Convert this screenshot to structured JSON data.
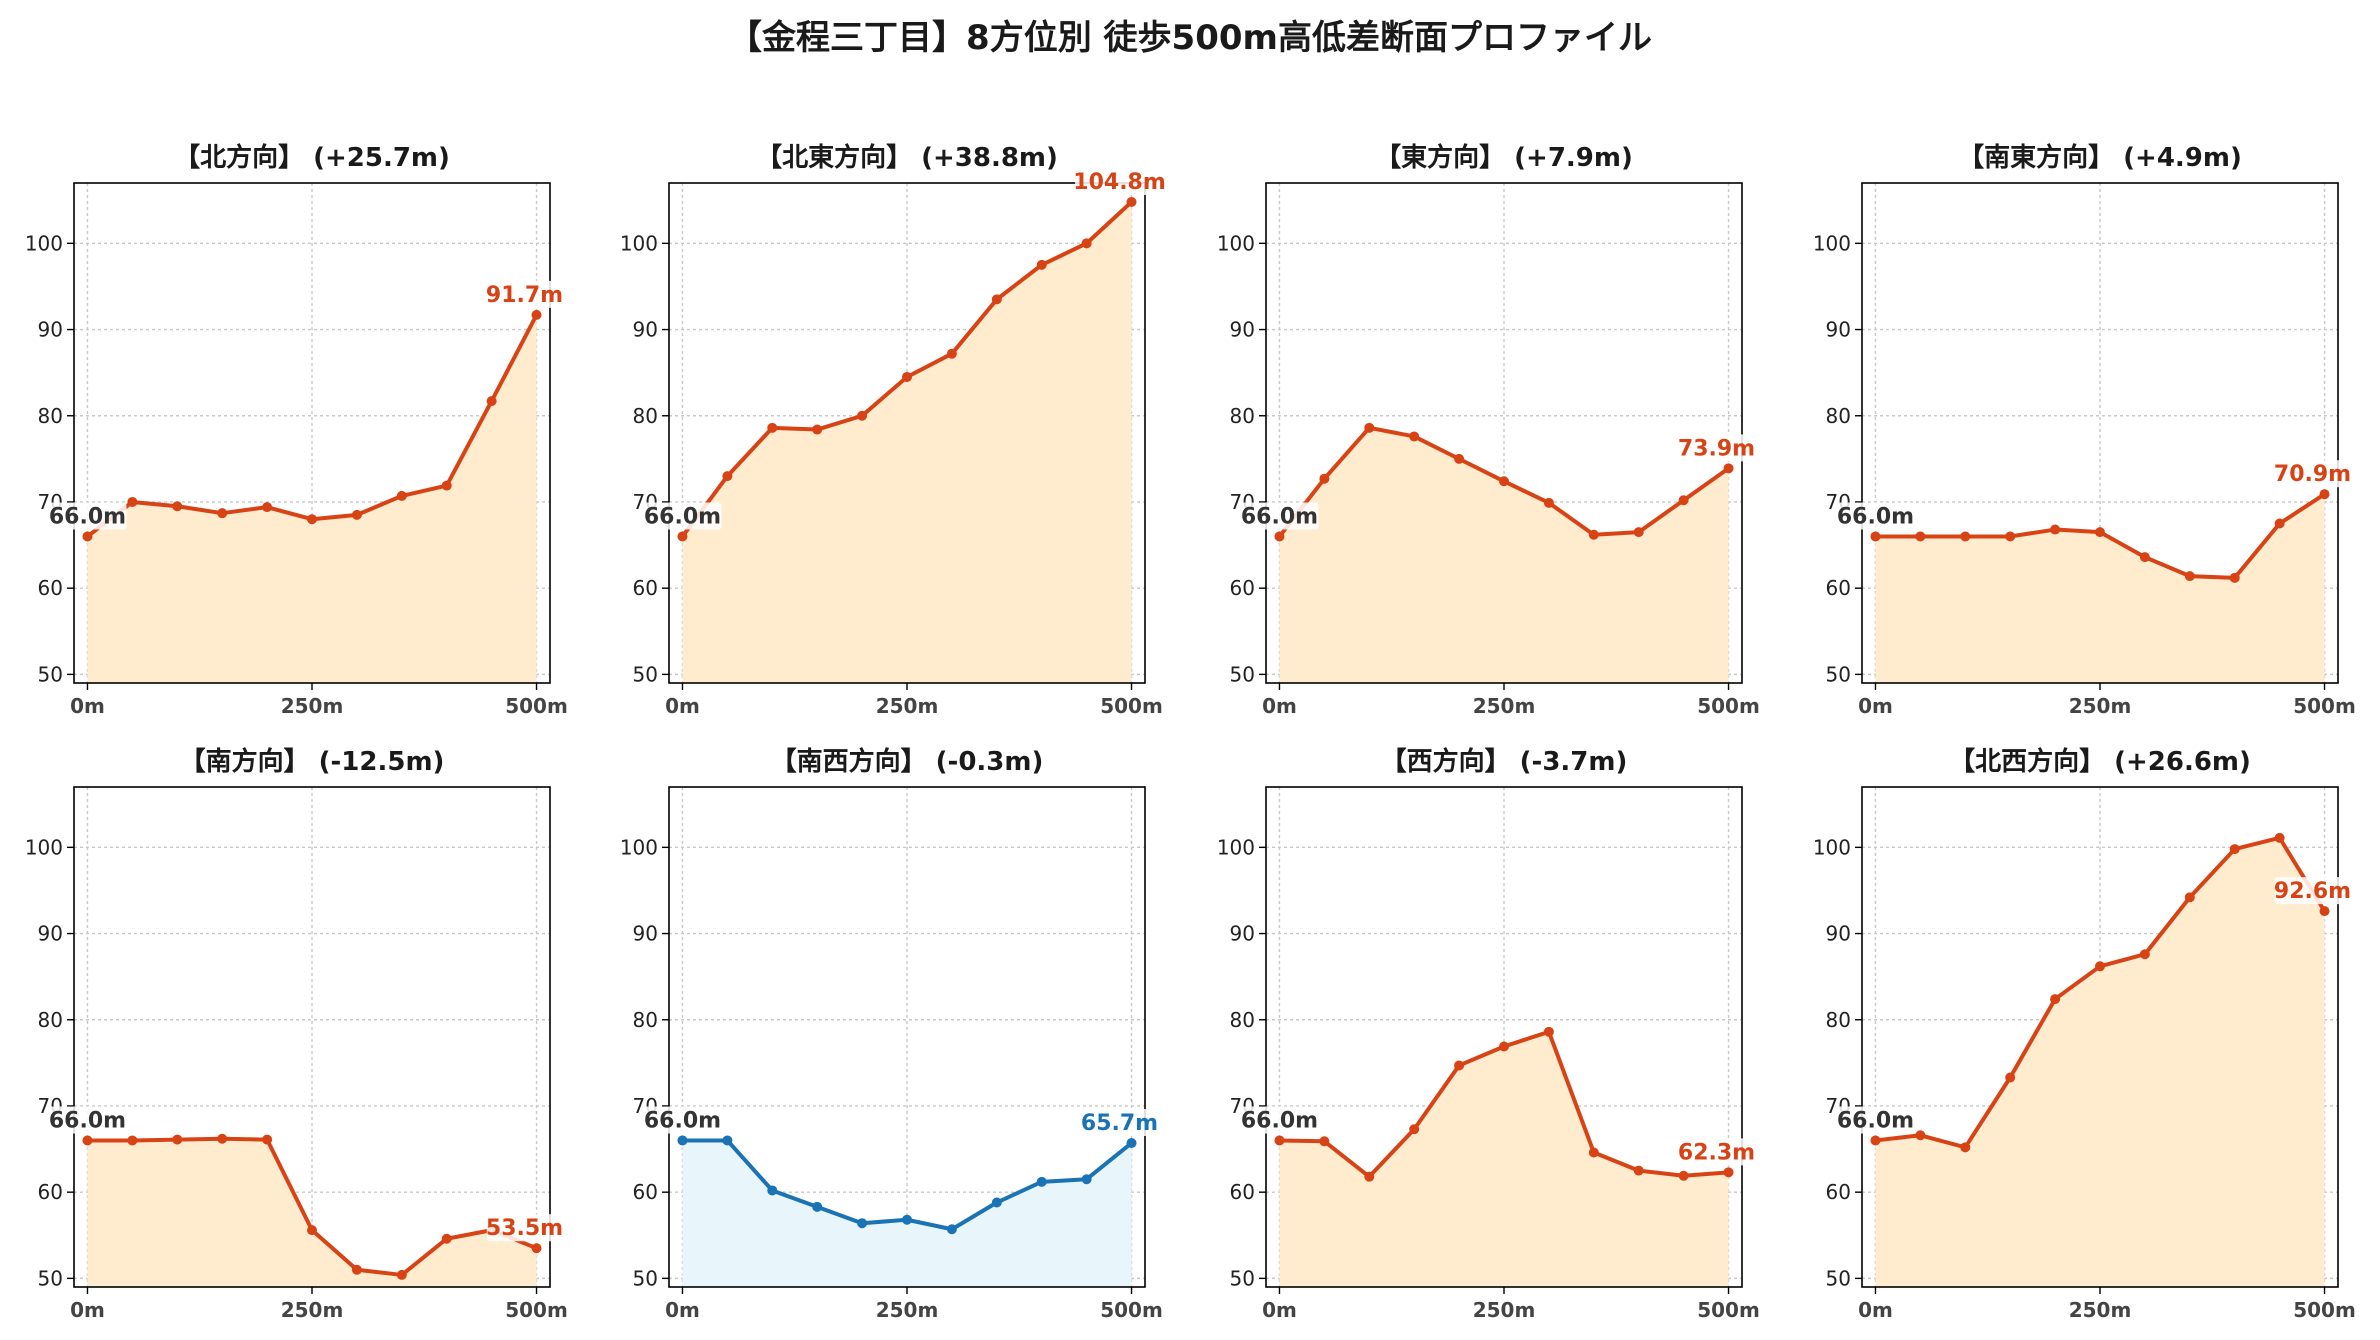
{
  "title": "【金程三丁目】8方位別 徒歩500m高低差断面プロファイル",
  "colors": {
    "up_line": "#d84315",
    "up_fill": "#ffeccf",
    "down_line": "#1a73b5",
    "down_fill": "#e8f6fb",
    "start_label": "#333333",
    "grid": "#c8c8c8",
    "axis": "#000000"
  },
  "chart_data": [
    {
      "type": "area",
      "title": "【北方向】 (+25.7m)",
      "trend": "up",
      "x": [
        0,
        50,
        100,
        150,
        200,
        250,
        300,
        350,
        400,
        450,
        500
      ],
      "y": [
        66.0,
        70.0,
        69.5,
        68.7,
        69.4,
        68.0,
        68.5,
        70.7,
        71.9,
        81.7,
        91.7
      ],
      "start_label": "66.0m",
      "end_label": "91.7m",
      "ylim": [
        49,
        107
      ],
      "yticks": [
        50,
        60,
        70,
        80,
        90,
        100
      ],
      "xticks": [
        0,
        250,
        500
      ],
      "xtick_labels": [
        "0m",
        "250m",
        "500m"
      ],
      "grid": true
    },
    {
      "type": "area",
      "title": "【北東方向】 (+38.8m)",
      "trend": "up",
      "x": [
        0,
        50,
        100,
        150,
        200,
        250,
        300,
        350,
        400,
        450,
        500
      ],
      "y": [
        66.0,
        73.0,
        78.6,
        78.4,
        80.0,
        84.5,
        87.2,
        93.5,
        97.5,
        100.0,
        104.8
      ],
      "start_label": "66.0m",
      "end_label": "104.8m",
      "ylim": [
        49,
        107
      ],
      "yticks": [
        50,
        60,
        70,
        80,
        90,
        100
      ],
      "xticks": [
        0,
        250,
        500
      ],
      "xtick_labels": [
        "0m",
        "250m",
        "500m"
      ],
      "grid": true
    },
    {
      "type": "area",
      "title": "【東方向】 (+7.9m)",
      "trend": "up",
      "x": [
        0,
        50,
        100,
        150,
        200,
        250,
        300,
        350,
        400,
        450,
        500
      ],
      "y": [
        66.0,
        72.7,
        78.6,
        77.6,
        75.0,
        72.4,
        69.9,
        66.2,
        66.5,
        70.2,
        73.9
      ],
      "start_label": "66.0m",
      "end_label": "73.9m",
      "ylim": [
        49,
        107
      ],
      "yticks": [
        50,
        60,
        70,
        80,
        90,
        100
      ],
      "xticks": [
        0,
        250,
        500
      ],
      "xtick_labels": [
        "0m",
        "250m",
        "500m"
      ],
      "grid": true
    },
    {
      "type": "area",
      "title": "【南東方向】 (+4.9m)",
      "trend": "up",
      "x": [
        0,
        50,
        100,
        150,
        200,
        250,
        300,
        350,
        400,
        450,
        500
      ],
      "y": [
        66.0,
        66.0,
        66.0,
        66.0,
        66.8,
        66.5,
        63.6,
        61.4,
        61.2,
        67.5,
        70.9
      ],
      "start_label": "66.0m",
      "end_label": "70.9m",
      "ylim": [
        49,
        107
      ],
      "yticks": [
        50,
        60,
        70,
        80,
        90,
        100
      ],
      "xticks": [
        0,
        250,
        500
      ],
      "xtick_labels": [
        "0m",
        "250m",
        "500m"
      ],
      "grid": true
    },
    {
      "type": "area",
      "title": "【南方向】 (-12.5m)",
      "trend": "up",
      "x": [
        0,
        50,
        100,
        150,
        200,
        250,
        300,
        350,
        400,
        450,
        500
      ],
      "y": [
        66.0,
        66.0,
        66.1,
        66.2,
        66.1,
        55.6,
        51.0,
        50.4,
        54.6,
        55.6,
        53.5
      ],
      "start_label": "66.0m",
      "end_label": "53.5m",
      "ylim": [
        49,
        107
      ],
      "yticks": [
        50,
        60,
        70,
        80,
        90,
        100
      ],
      "xticks": [
        0,
        250,
        500
      ],
      "xtick_labels": [
        "0m",
        "250m",
        "500m"
      ],
      "grid": true
    },
    {
      "type": "area",
      "title": "【南西方向】 (-0.3m)",
      "trend": "down",
      "x": [
        0,
        50,
        100,
        150,
        200,
        250,
        300,
        350,
        400,
        450,
        500
      ],
      "y": [
        66.0,
        66.0,
        60.2,
        58.3,
        56.4,
        56.8,
        55.7,
        58.8,
        61.2,
        61.5,
        65.7
      ],
      "start_label": "66.0m",
      "end_label": "65.7m",
      "ylim": [
        49,
        107
      ],
      "yticks": [
        50,
        60,
        70,
        80,
        90,
        100
      ],
      "xticks": [
        0,
        250,
        500
      ],
      "xtick_labels": [
        "0m",
        "250m",
        "500m"
      ],
      "grid": true
    },
    {
      "type": "area",
      "title": "【西方向】 (-3.7m)",
      "trend": "up",
      "x": [
        0,
        50,
        100,
        150,
        200,
        250,
        300,
        350,
        400,
        450,
        500
      ],
      "y": [
        66.0,
        65.9,
        61.8,
        67.3,
        74.7,
        76.9,
        78.6,
        64.6,
        62.5,
        61.9,
        62.3
      ],
      "start_label": "66.0m",
      "end_label": "62.3m",
      "ylim": [
        49,
        107
      ],
      "yticks": [
        50,
        60,
        70,
        80,
        90,
        100
      ],
      "xticks": [
        0,
        250,
        500
      ],
      "xtick_labels": [
        "0m",
        "250m",
        "500m"
      ],
      "grid": true
    },
    {
      "type": "area",
      "title": "【北西方向】 (+26.6m)",
      "trend": "up",
      "x": [
        0,
        50,
        100,
        150,
        200,
        250,
        300,
        350,
        400,
        450,
        500
      ],
      "y": [
        66.0,
        66.6,
        65.2,
        73.3,
        82.4,
        86.2,
        87.6,
        94.2,
        99.8,
        101.1,
        92.6
      ],
      "start_label": "66.0m",
      "end_label": "92.6m",
      "ylim": [
        49,
        107
      ],
      "yticks": [
        50,
        60,
        70,
        80,
        90,
        100
      ],
      "xticks": [
        0,
        250,
        500
      ],
      "xtick_labels": [
        "0m",
        "250m",
        "500m"
      ],
      "grid": true
    }
  ]
}
